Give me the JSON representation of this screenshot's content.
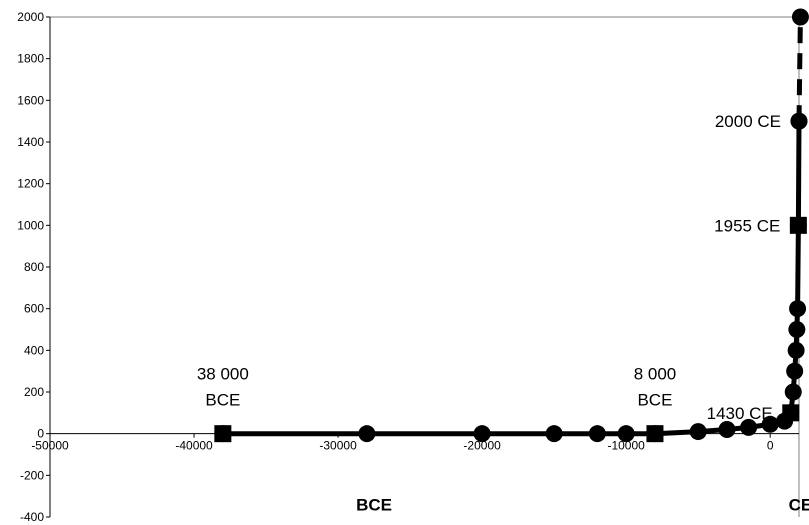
{
  "chart_data": {
    "type": "line",
    "title": "",
    "xlabel": "",
    "ylabel": "",
    "xlim": [
      -50000,
      2000
    ],
    "ylim": [
      -400,
      2000
    ],
    "x_ticks": [
      -50000,
      -40000,
      -30000,
      -20000,
      -10000,
      0
    ],
    "x_tick_labels": [
      "-50000",
      "-40000",
      "-30000",
      "-20000",
      "-10000",
      "0"
    ],
    "y_ticks": [
      -400,
      -200,
      0,
      200,
      400,
      600,
      800,
      1000,
      1200,
      1400,
      1600,
      1800,
      2000
    ],
    "y_tick_labels": [
      "-400",
      "-200",
      "0",
      "200",
      "400",
      "600",
      "800",
      "1000",
      "1200",
      "1400",
      "1600",
      "1800",
      "2000"
    ],
    "grid": false,
    "series": [
      {
        "marker": "circle",
        "line": "solid",
        "points": [
          {
            "x": -38000,
            "y": 0
          },
          {
            "x": -28000,
            "y": 0
          },
          {
            "x": -20000,
            "y": 0
          },
          {
            "x": -15000,
            "y": 0
          },
          {
            "x": -12000,
            "y": 0
          },
          {
            "x": -10000,
            "y": 0
          },
          {
            "x": -8000,
            "y": 0
          },
          {
            "x": -5000,
            "y": 10
          },
          {
            "x": -3000,
            "y": 20
          },
          {
            "x": -1500,
            "y": 30
          },
          {
            "x": 0,
            "y": 45
          },
          {
            "x": 1000,
            "y": 60
          },
          {
            "x": 1430,
            "y": 100
          },
          {
            "x": 1600,
            "y": 200
          },
          {
            "x": 1700,
            "y": 300
          },
          {
            "x": 1800,
            "y": 400
          },
          {
            "x": 1850,
            "y": 500
          },
          {
            "x": 1900,
            "y": 600
          },
          {
            "x": 1955,
            "y": 1000
          },
          {
            "x": 2000,
            "y": 1500
          }
        ]
      },
      {
        "marker": "circle",
        "line": "dashed",
        "points": [
          {
            "x": 2000,
            "y": 1500
          },
          {
            "x": 2100,
            "y": 2000
          }
        ]
      }
    ],
    "square_markers": [
      {
        "x": -38000,
        "y": 0
      },
      {
        "x": -8000,
        "y": 0
      },
      {
        "x": 1430,
        "y": 100
      },
      {
        "x": 1955,
        "y": 1000
      }
    ],
    "annotations": [
      {
        "lines": [
          "38 000",
          "BCE"
        ],
        "x": -38000,
        "y": 0,
        "anchor": "center",
        "style": "normal"
      },
      {
        "lines": [
          "8 000",
          "BCE"
        ],
        "x": -8000,
        "y": 0,
        "anchor": "center",
        "style": "normal"
      },
      {
        "lines": [
          "1430 CE"
        ],
        "x": 1430,
        "y": 100,
        "anchor": "right",
        "style": "normal"
      },
      {
        "lines": [
          "1955 CE"
        ],
        "x": 1955,
        "y": 1000,
        "anchor": "right",
        "style": "normal"
      },
      {
        "lines": [
          "2000 CE"
        ],
        "x": 2000,
        "y": 1500,
        "anchor": "right",
        "style": "normal"
      },
      {
        "lines": [
          "BCE"
        ],
        "x": -27500,
        "y": -340,
        "anchor": "center",
        "style": "bold"
      },
      {
        "lines": [
          "CE"
        ],
        "x": 2100,
        "y": -340,
        "anchor": "center",
        "style": "bold"
      }
    ]
  }
}
